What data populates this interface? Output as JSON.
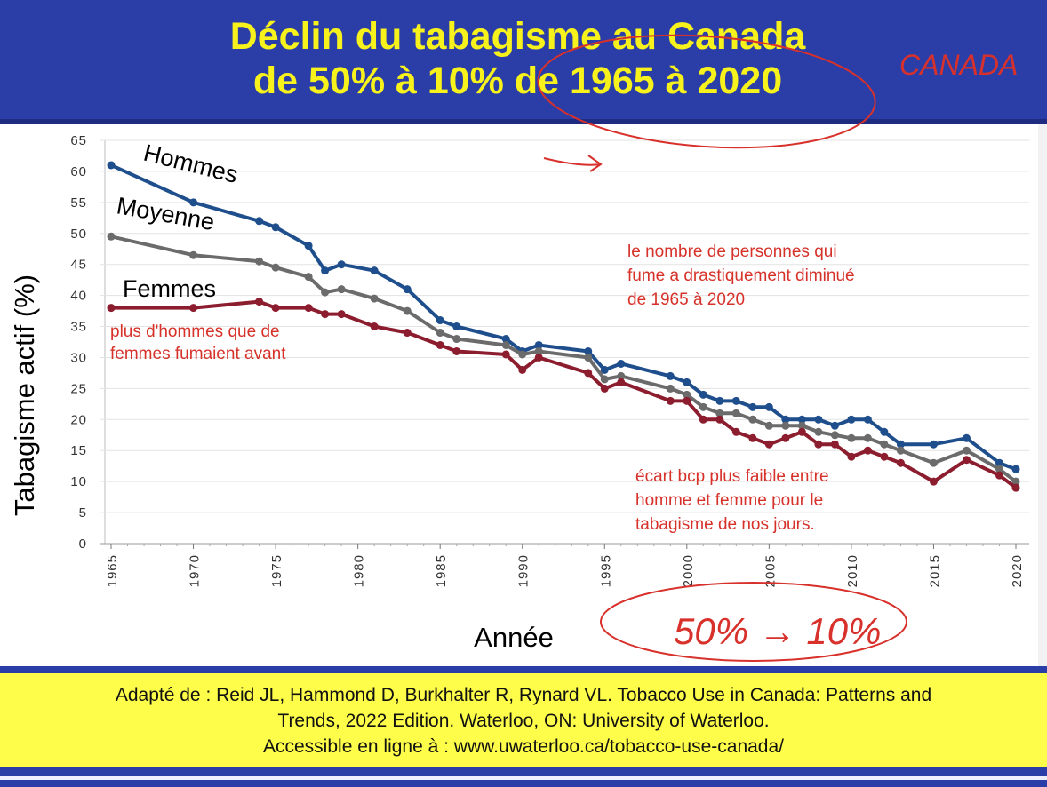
{
  "header": {
    "title_line1": "Déclin du tabagisme au Canada",
    "title_line2": "de 50% à 10% de 1965 à 2020"
  },
  "handwritten": {
    "canada": "CANADA",
    "range": "50% → 10%"
  },
  "footer": {
    "line1": "Adapté de : Reid JL, Hammond D, Burkhalter R, Rynard VL. Tobacco Use in Canada: Patterns and",
    "line2": "Trends, 2022 Edition. Waterloo, ON: University of Waterloo.",
    "line3": "Accessible en ligne à : www.uwaterloo.ca/tobacco-use-canada/"
  },
  "colors": {
    "header_bg": "#2b3ea8",
    "title": "#f7f21c",
    "footer_bg": "#fdfd4a",
    "hommes": "#1f4e8c",
    "moyenne": "#6b6b6b",
    "femmes": "#8c1d2e",
    "annotation": "#d6322a"
  },
  "chart_data": {
    "type": "line",
    "xlabel": "Année",
    "ylabel": "Tabagisme actif (%)",
    "ylim": [
      0,
      65
    ],
    "xlim": [
      1965,
      2020
    ],
    "yticks": [
      0,
      5,
      10,
      15,
      20,
      25,
      30,
      35,
      40,
      45,
      50,
      55,
      60,
      65
    ],
    "xticks": [
      1965,
      1970,
      1975,
      1980,
      1985,
      1990,
      1995,
      2000,
      2005,
      2010,
      2015,
      2020
    ],
    "grid": "horizontal",
    "series": [
      {
        "name": "Hommes",
        "color": "#1f4e8c",
        "points": [
          [
            1965,
            61
          ],
          [
            1970,
            55
          ],
          [
            1974,
            52
          ],
          [
            1975,
            51
          ],
          [
            1977,
            48
          ],
          [
            1978,
            44
          ],
          [
            1979,
            45
          ],
          [
            1981,
            44
          ],
          [
            1983,
            41
          ],
          [
            1985,
            36
          ],
          [
            1986,
            35
          ],
          [
            1989,
            33
          ],
          [
            1990,
            31
          ],
          [
            1991,
            32
          ],
          [
            1994,
            31
          ],
          [
            1995,
            28
          ],
          [
            1996,
            29
          ],
          [
            1999,
            27
          ],
          [
            2000,
            26
          ],
          [
            2001,
            24
          ],
          [
            2002,
            23
          ],
          [
            2003,
            23
          ],
          [
            2004,
            22
          ],
          [
            2005,
            22
          ],
          [
            2006,
            20
          ],
          [
            2007,
            20
          ],
          [
            2008,
            20
          ],
          [
            2009,
            19
          ],
          [
            2010,
            20
          ],
          [
            2011,
            20
          ],
          [
            2012,
            18
          ],
          [
            2013,
            16
          ],
          [
            2015,
            16
          ],
          [
            2017,
            17
          ],
          [
            2019,
            13
          ],
          [
            2020,
            12
          ]
        ]
      },
      {
        "name": "Moyenne",
        "color": "#6b6b6b",
        "points": [
          [
            1965,
            49.5
          ],
          [
            1970,
            46.5
          ],
          [
            1974,
            45.5
          ],
          [
            1975,
            44.5
          ],
          [
            1977,
            43
          ],
          [
            1978,
            40.5
          ],
          [
            1979,
            41
          ],
          [
            1981,
            39.5
          ],
          [
            1983,
            37.5
          ],
          [
            1985,
            34
          ],
          [
            1986,
            33
          ],
          [
            1989,
            32
          ],
          [
            1990,
            30.5
          ],
          [
            1991,
            31
          ],
          [
            1994,
            30
          ],
          [
            1995,
            26.5
          ],
          [
            1996,
            27
          ],
          [
            1999,
            25
          ],
          [
            2000,
            24
          ],
          [
            2001,
            22
          ],
          [
            2002,
            21
          ],
          [
            2003,
            21
          ],
          [
            2004,
            20
          ],
          [
            2005,
            19
          ],
          [
            2006,
            19
          ],
          [
            2007,
            19
          ],
          [
            2008,
            18
          ],
          [
            2009,
            17.5
          ],
          [
            2010,
            17
          ],
          [
            2011,
            17
          ],
          [
            2012,
            16
          ],
          [
            2013,
            15
          ],
          [
            2015,
            13
          ],
          [
            2017,
            15
          ],
          [
            2019,
            12
          ],
          [
            2020,
            10
          ]
        ]
      },
      {
        "name": "Femmes",
        "color": "#8c1d2e",
        "points": [
          [
            1965,
            38
          ],
          [
            1970,
            38
          ],
          [
            1974,
            39
          ],
          [
            1975,
            38
          ],
          [
            1977,
            38
          ],
          [
            1978,
            37
          ],
          [
            1979,
            37
          ],
          [
            1981,
            35
          ],
          [
            1983,
            34
          ],
          [
            1985,
            32
          ],
          [
            1986,
            31
          ],
          [
            1989,
            30.5
          ],
          [
            1990,
            28
          ],
          [
            1991,
            30
          ],
          [
            1994,
            27.5
          ],
          [
            1995,
            25
          ],
          [
            1996,
            26
          ],
          [
            1999,
            23
          ],
          [
            2000,
            23
          ],
          [
            2001,
            20
          ],
          [
            2002,
            20
          ],
          [
            2003,
            18
          ],
          [
            2004,
            17
          ],
          [
            2005,
            16
          ],
          [
            2006,
            17
          ],
          [
            2007,
            18
          ],
          [
            2008,
            16
          ],
          [
            2009,
            16
          ],
          [
            2010,
            14
          ],
          [
            2011,
            15
          ],
          [
            2012,
            14
          ],
          [
            2013,
            13
          ],
          [
            2015,
            10
          ],
          [
            2017,
            13.5
          ],
          [
            2019,
            11
          ],
          [
            2020,
            9
          ]
        ]
      }
    ],
    "annotations": [
      {
        "name": "annotation-men-women",
        "lines": [
          "plus d'hommes que de",
          "femmes fumaient avant"
        ]
      },
      {
        "name": "annotation-decline",
        "lines": [
          "le nombre de personnes qui",
          "fume a drastiquement diminué",
          "de 1965 à 2020"
        ]
      },
      {
        "name": "annotation-gap",
        "lines": [
          "écart bcp plus faible entre",
          "homme et femme pour le",
          "tabagisme de nos jours."
        ]
      }
    ]
  }
}
